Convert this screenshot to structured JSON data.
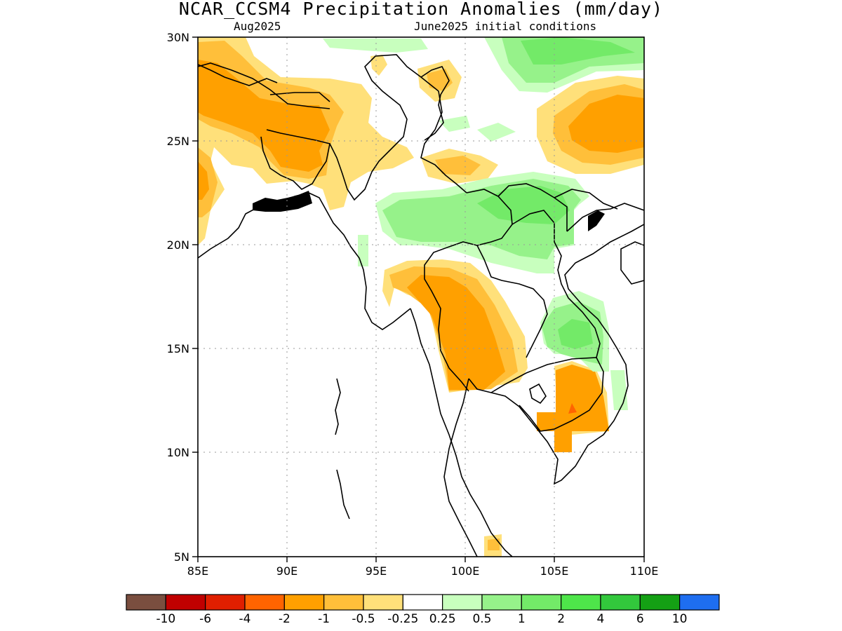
{
  "title": "NCAR_CCSM4 Precipitation Anomalies (mm/day)",
  "subtitle_left": "Aug2025",
  "subtitle_right": "June2025 initial conditions",
  "map": {
    "lon_range": [
      85,
      110
    ],
    "lat_range": [
      5,
      30
    ],
    "x_ticks": [
      "85E",
      "90E",
      "95E",
      "100E",
      "105E",
      "110E"
    ],
    "y_ticks": [
      "5N",
      "10N",
      "15N",
      "20N",
      "25N",
      "30N"
    ],
    "gridlines": "dotted"
  },
  "colorbar": {
    "colors": [
      "#7a4e3f",
      "#c00000",
      "#e01f00",
      "#ff6400",
      "#ffa000",
      "#ffbf3a",
      "#ffe07a",
      "#ffffff",
      "#c8ffbe",
      "#96f28a",
      "#73ea68",
      "#4ee54a",
      "#32c83c",
      "#14a014",
      "#1e6ef0"
    ],
    "labels": [
      "-10",
      "-6",
      "-4",
      "-2",
      "-1",
      "-0.5",
      "-0.25",
      "0.25",
      "0.5",
      "1",
      "2",
      "4",
      "6",
      "10"
    ]
  },
  "palette": {
    "neg_025": "#ffe07a",
    "neg_05": "#ffbf3a",
    "neg_1": "#ffa000",
    "neg_2": "#ff6400",
    "pos_025": "#c8ffbe",
    "pos_05": "#96f28a",
    "pos_1": "#73ea68"
  }
}
